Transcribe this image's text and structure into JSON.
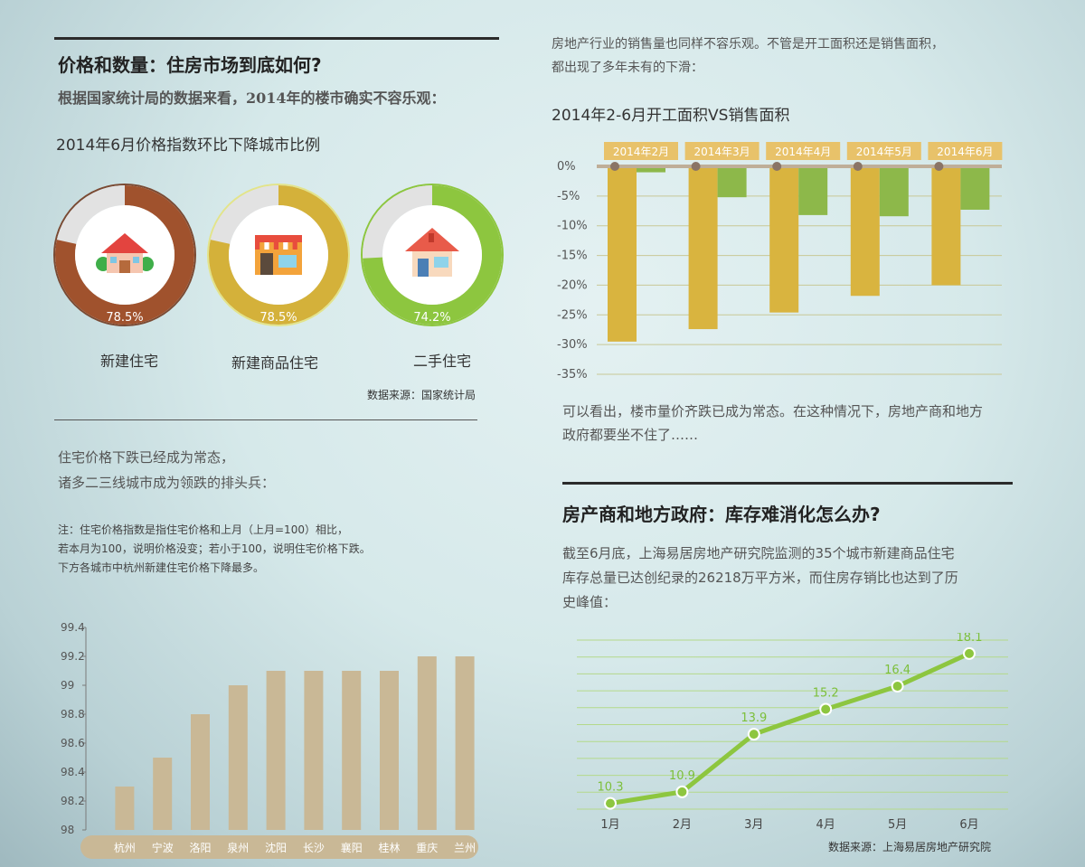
{
  "left": {
    "section_title": "价格和数量：住房市场到底如何?",
    "intro": "根据国家统计局的数据来看，2014年的楼市确实不容乐观：",
    "rings_title": "2014年6月价格指数环比下降城市比例",
    "rings": [
      {
        "label": "新建住宅",
        "pct_text": "78.5%",
        "value": 78.5,
        "color": "#a0522d",
        "icon": "house-with-trees-icon"
      },
      {
        "label": "新建商品住宅",
        "pct_text": "78.5%",
        "value": 78.5,
        "color": "#d4b13a",
        "icon": "storefront-icon"
      },
      {
        "label": "二手住宅",
        "pct_text": "74.2%",
        "value": 74.2,
        "color": "#8dc63f",
        "icon": "house-icon"
      }
    ],
    "rings_source": "数据来源：国家统计局",
    "text1_line1": "住宅价格下跌已经成为常态，",
    "text1_line2": "诸多二三线城市成为领跌的排头兵：",
    "note_line1": "注：住宅价格指数是指住宅价格和上月（上月=100）相比，",
    "note_line2": "若本月为100，说明价格没变；若小于100，说明住宅价格下跌。",
    "note_line3": "下方各城市中杭州新建住宅价格下降最多。"
  },
  "right": {
    "intro_line1": "房地产行业的销售量也同样不容乐观。不管是开工面积还是销售面积，",
    "intro_line2": "都出现了多年未有的下滑：",
    "bar_title": "2014年2-6月开工面积VS销售面积",
    "after_line1": "可以看出，楼市量价齐跌已成为常态。在这种情况下，房地产商和地方",
    "after_line2": "政府都要坐不住了……",
    "section_title": "房产商和地方政府：库存难消化怎么办?",
    "para_line1": "截至6月底，上海易居房地产研究院监测的35个城市新建商品住宅",
    "para_line2": "库存总量已达创纪录的26218万平方米，而住房存销比也达到了历",
    "para_line3": "史峰值：",
    "line_source": "数据来源：上海易居房地产研究院"
  },
  "colors": {
    "brown": "#a0522d",
    "gold": "#d4b13a",
    "green": "#8dc63f",
    "tan": "#c9b896",
    "line_green": "#8dc63f"
  },
  "chart_data": [
    {
      "type": "bar",
      "title": "",
      "categories": [
        "杭州",
        "宁波",
        "洛阳",
        "泉州",
        "沈阳",
        "长沙",
        "襄阳",
        "桂林",
        "重庆",
        "兰州"
      ],
      "values": [
        98.3,
        98.5,
        98.8,
        99.0,
        99.1,
        99.1,
        99.1,
        99.1,
        99.2,
        99.2
      ],
      "ylim": [
        98,
        99.4
      ],
      "yticks": [
        "98",
        "98.2",
        "98.4",
        "98.6",
        "98.8",
        "99",
        "99.2",
        "99.4"
      ],
      "ytick_values": [
        98,
        98.2,
        98.4,
        98.6,
        98.8,
        99,
        99.2,
        99.4
      ],
      "xlabel": "",
      "ylabel": ""
    },
    {
      "type": "bar",
      "title": "2014年2-6月开工面积VS销售面积",
      "categories": [
        "2014年2月",
        "2014年3月",
        "2014年4月",
        "2014年5月",
        "2014年6月"
      ],
      "series": [
        {
          "values": [
            -29.5,
            -27.4,
            -24.6,
            -21.8,
            -20.0
          ],
          "color": "#d9b43f"
        },
        {
          "values": [
            -1.0,
            -5.2,
            -8.2,
            -8.4,
            -7.3
          ],
          "color": "#8db84a"
        }
      ],
      "ylim": [
        -35,
        0
      ],
      "yticks": [
        "0%",
        "-5%",
        "-10%",
        "-15%",
        "-20%",
        "-25%",
        "-30%",
        "-35%"
      ],
      "ytick_values": [
        0,
        -5,
        -10,
        -15,
        -20,
        -25,
        -30,
        -35
      ],
      "xlabel": "",
      "ylabel": ""
    },
    {
      "type": "line",
      "title": "",
      "categories": [
        "1月",
        "2月",
        "3月",
        "4月",
        "5月",
        "6月"
      ],
      "values": [
        10.3,
        10.9,
        13.9,
        15.2,
        16.4,
        18.1
      ],
      "labels": [
        "10.3",
        "10.9",
        "13.9",
        "15.2",
        "16.4",
        "18.1"
      ],
      "ylim": [
        10,
        18.8
      ],
      "xlabel": "",
      "ylabel": ""
    }
  ]
}
